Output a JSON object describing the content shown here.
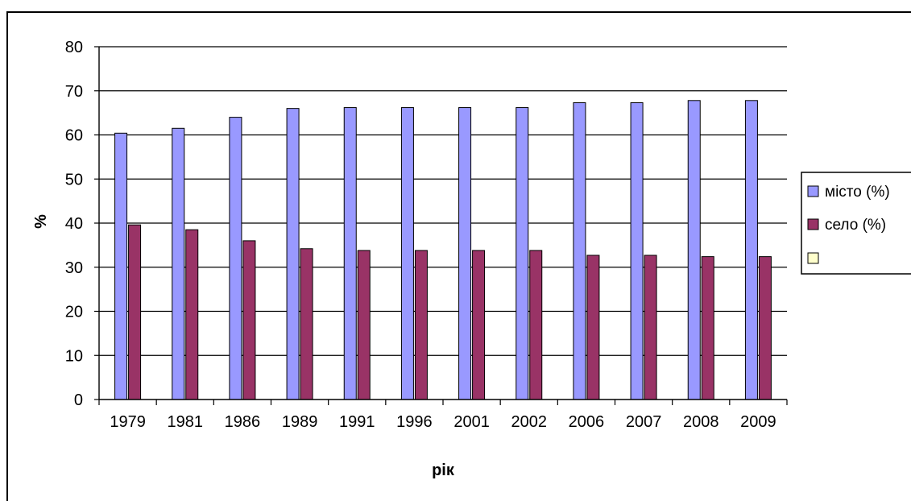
{
  "chart_data": {
    "type": "bar",
    "title": "",
    "xlabel": "рік",
    "ylabel": "%",
    "ylim": [
      0,
      80
    ],
    "yticks": [
      0,
      10,
      20,
      30,
      40,
      50,
      60,
      70,
      80
    ],
    "grid": true,
    "legend_position": "right",
    "categories": [
      "1979",
      "1981",
      "1986",
      "1989",
      "1991",
      "1996",
      "2001",
      "2002",
      "2006",
      "2007",
      "2008",
      "2009"
    ],
    "series": [
      {
        "name": "місто (%)",
        "color": "#9999ff",
        "values": [
          60.4,
          61.5,
          64.0,
          66.0,
          66.2,
          66.2,
          66.2,
          66.2,
          67.3,
          67.3,
          67.8,
          67.8
        ]
      },
      {
        "name": "село (%)",
        "color": "#993366",
        "values": [
          39.6,
          38.5,
          36.0,
          34.2,
          33.8,
          33.8,
          33.8,
          33.8,
          32.7,
          32.7,
          32.4,
          32.4
        ]
      }
    ],
    "legend": [
      {
        "label": "місто (%)",
        "color": "#9999ff"
      },
      {
        "label": "село (%)",
        "color": "#993366"
      },
      {
        "label": "",
        "color": "#ffffcc"
      }
    ]
  }
}
